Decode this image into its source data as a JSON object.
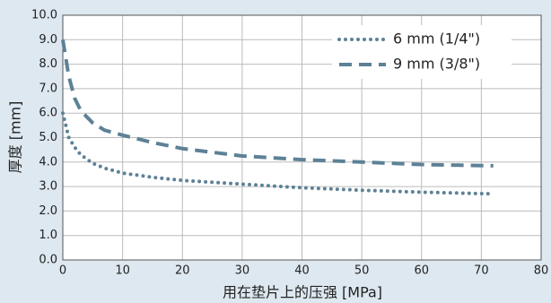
{
  "chart_data": {
    "type": "line",
    "xlabel": "用在垫片上的压强 [MPa]",
    "ylabel": "厚度 [mm]",
    "x": [
      0,
      1,
      2,
      3,
      5,
      7,
      10,
      15,
      20,
      30,
      40,
      50,
      60,
      72
    ],
    "series": [
      {
        "name": "6 mm (1/4\")",
        "color": "#5d8196",
        "style": "dotted",
        "values": [
          6.0,
          5.0,
          4.6,
          4.3,
          3.95,
          3.75,
          3.55,
          3.38,
          3.25,
          3.1,
          2.95,
          2.85,
          2.77,
          2.7
        ]
      },
      {
        "name": "9 mm (3/8\")",
        "color": "#5d8196",
        "style": "dashed",
        "values": [
          9.0,
          7.5,
          6.6,
          6.1,
          5.6,
          5.3,
          5.1,
          4.8,
          4.55,
          4.25,
          4.1,
          4.0,
          3.9,
          3.85
        ]
      }
    ],
    "xlim": [
      0,
      80
    ],
    "xticks": [
      0,
      10,
      20,
      30,
      40,
      50,
      60,
      70,
      80
    ],
    "ylim": [
      0,
      10
    ],
    "yticks": [
      {
        "value": 0,
        "label": "0.0"
      },
      {
        "value": 1,
        "label": "1.0"
      },
      {
        "value": 2,
        "label": "2.0"
      },
      {
        "value": 3,
        "label": "3.0"
      },
      {
        "value": 4,
        "label": "4.0"
      },
      {
        "value": 5,
        "label": "5.0"
      },
      {
        "value": 6,
        "label": "6.0"
      },
      {
        "value": 7,
        "label": "7.0"
      },
      {
        "value": 8,
        "label": "8.0"
      },
      {
        "value": 9,
        "label": "9.0"
      },
      {
        "value": 10,
        "label": "10.0"
      }
    ],
    "grid": true,
    "legend": "upper right"
  }
}
